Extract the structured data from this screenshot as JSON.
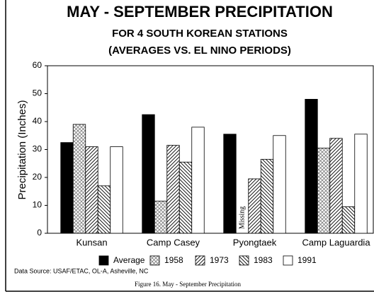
{
  "chart_data": {
    "type": "bar",
    "title": "MAY - SEPTEMBER PRECIPITATION",
    "subtitle": [
      "FOR 4 SOUTH KOREAN STATIONS",
      "(AVERAGES VS. EL NINO PERIODS)"
    ],
    "y_label": "Precipitation (Inches)",
    "categories": [
      "Kunsan",
      "Camp Casey",
      "Pyongtaek",
      "Camp Laguardia"
    ],
    "series": [
      {
        "name": "Average",
        "color": "#000000",
        "pattern": "solid",
        "values": [
          32.5,
          42.5,
          35.5,
          48
        ]
      },
      {
        "name": "1958",
        "color": "#808080",
        "pattern": "crosshatch",
        "values": [
          39,
          11.5,
          null,
          30.5
        ]
      },
      {
        "name": "1973",
        "color": "#000000",
        "pattern": "forward",
        "values": [
          31,
          31.5,
          19.5,
          34
        ]
      },
      {
        "name": "1983",
        "color": "#000000",
        "pattern": "back",
        "values": [
          17,
          25.5,
          26.5,
          9.5
        ]
      },
      {
        "name": "1991",
        "color": "#ffffff",
        "pattern": "none",
        "values": [
          31,
          38,
          35,
          35.5
        ]
      }
    ],
    "missing_label": "Missing",
    "ylim": [
      0,
      60
    ],
    "yticks": [
      0,
      10,
      20,
      30,
      40,
      50,
      60
    ],
    "grid": false,
    "legend": "bottom",
    "source": "Data Source: USAF/ETAC, OL-A, Asheville, NC",
    "caption": "Figure 16.  May - September Precipitation"
  }
}
